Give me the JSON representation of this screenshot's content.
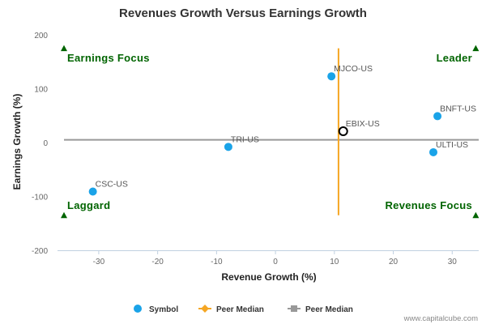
{
  "chart_data": {
    "type": "scatter",
    "title": "Revenues Growth Versus Earnings Growth",
    "xlabel": "Revenue Growth (%)",
    "ylabel": "Earnings Growth (%)",
    "xlim": [
      -37,
      34.5
    ],
    "ylim": [
      -200,
      200
    ],
    "x_ticks": [
      -30,
      -20,
      -10,
      0,
      10,
      20,
      30
    ],
    "y_ticks": [
      -200,
      -100,
      0,
      100,
      200
    ],
    "grid": false,
    "points": [
      {
        "name": "MJCO-US",
        "x": 9.5,
        "y": 123
      },
      {
        "name": "BNFT-US",
        "x": 27.5,
        "y": 49
      },
      {
        "name": "EBIX-US",
        "x": 11.5,
        "y": 21
      },
      {
        "name": "TRI-US",
        "x": -8,
        "y": -8
      },
      {
        "name": "ULTI-US",
        "x": 26.8,
        "y": -18
      },
      {
        "name": "CSC-US",
        "x": -31,
        "y": -91
      }
    ],
    "highlight": "EBIX-US",
    "peer_median_x": 10.7,
    "peer_median_y": 5,
    "quadrants": {
      "top_left": "Earnings Focus",
      "top_right": "Leader",
      "bottom_left": "Laggard",
      "bottom_right": "Revenues Focus"
    },
    "legend": {
      "position": "bottom",
      "items": [
        {
          "label": "Symbol",
          "marker": "circle",
          "color": "#1aa3e8"
        },
        {
          "label": "Peer Median",
          "marker": "diamond-line",
          "color": "#f5a623"
        },
        {
          "label": "Peer Median",
          "marker": "square-line",
          "color": "#999999"
        }
      ]
    },
    "colors": {
      "point": "#1aa3e8",
      "highlight_stroke": "#000000",
      "vertical_median": "#f5a623",
      "horizontal_median": "#999999",
      "quadrant": "#006400"
    }
  },
  "credit": "www.capitalcube.com"
}
